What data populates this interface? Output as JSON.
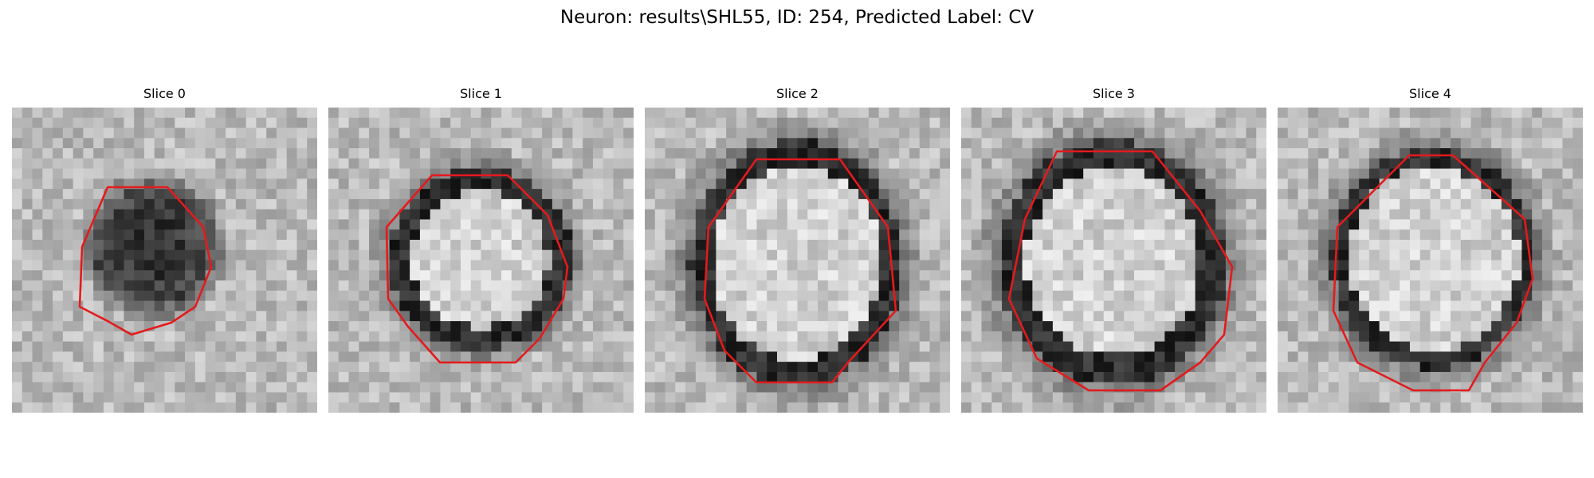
{
  "title": "Neuron: results\\SHL55, ID: 254, Predicted Label: CV",
  "panels": [
    {
      "label": "Slice 0",
      "type": "dark-blob"
    },
    {
      "label": "Slice 1",
      "type": "ring"
    },
    {
      "label": "Slice 2",
      "type": "ring"
    },
    {
      "label": "Slice 3",
      "type": "ring"
    },
    {
      "label": "Slice 4",
      "type": "ring"
    }
  ],
  "colors": {
    "contour": "#e41a1c",
    "background": "#ffffff"
  }
}
